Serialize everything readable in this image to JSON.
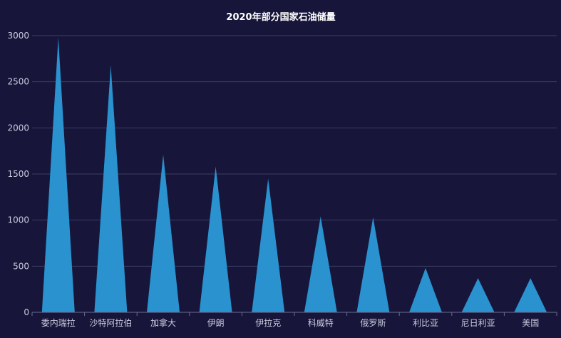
{
  "chart_data": {
    "type": "bar",
    "title": "2020年部分国家石油储量",
    "categories": [
      "委内瑞拉",
      "沙特阿拉伯",
      "加拿大",
      "伊朗",
      "伊拉克",
      "科威特",
      "俄罗斯",
      "利比亚",
      "尼日利亚",
      "美国"
    ],
    "values": [
      2980,
      2680,
      1710,
      1580,
      1450,
      1040,
      1030,
      480,
      370,
      370
    ],
    "ylim": [
      0,
      3000
    ],
    "yticks": [
      0,
      500,
      1000,
      1500,
      2000,
      2500,
      3000
    ],
    "xlabel": "",
    "ylabel": "",
    "grid": true,
    "bar_shape": "triangle"
  },
  "colors": {
    "background": "#17163a",
    "bar": "#2a92cf",
    "grid": "#3b3d63",
    "axis": "#6a6c90",
    "title": "#ffffff",
    "tick_label": "#c9cbe0"
  }
}
